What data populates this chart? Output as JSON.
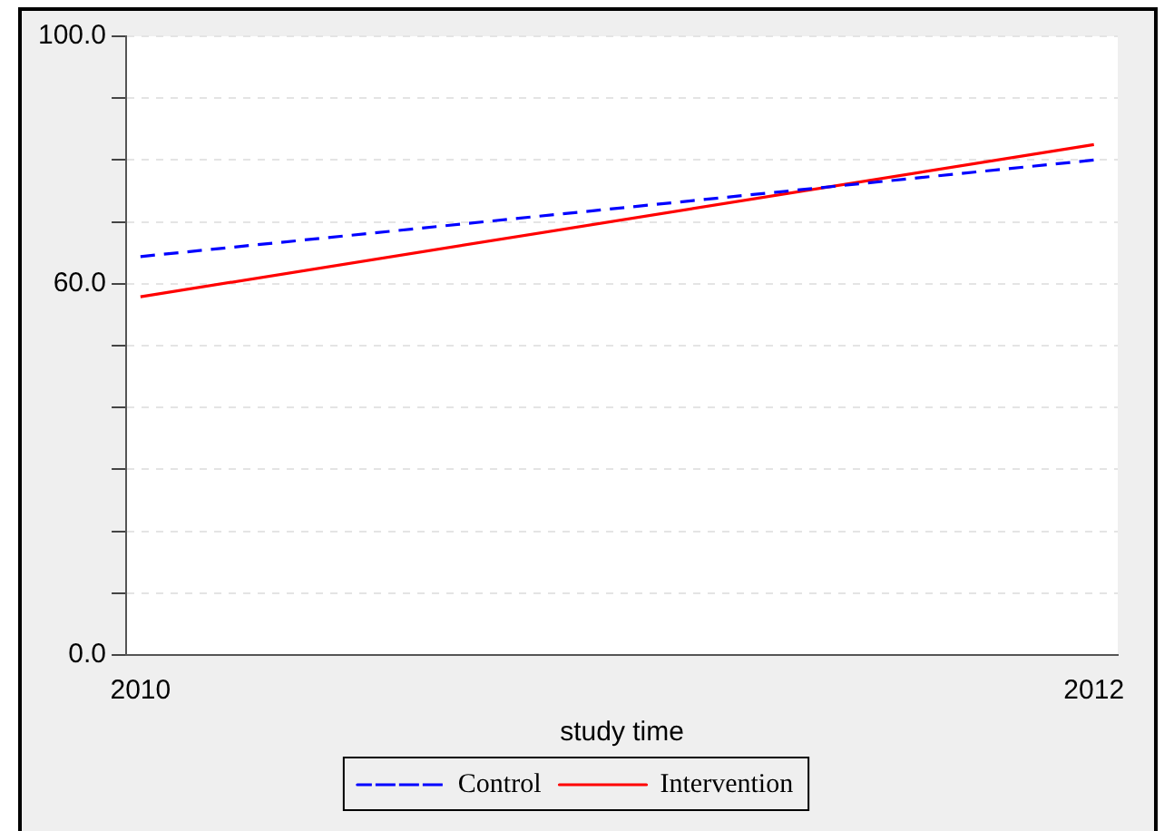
{
  "chart_data": {
    "type": "line",
    "xlabel": "study time",
    "x": [
      2010,
      2012
    ],
    "xlim": [
      2009.97,
      2012.05
    ],
    "xticks": [
      2010,
      2012
    ],
    "ylim": [
      0,
      100
    ],
    "yticks": [
      {
        "value": 0,
        "label": "0.0"
      },
      {
        "value": 10,
        "label": null
      },
      {
        "value": 20,
        "label": null
      },
      {
        "value": 30,
        "label": null
      },
      {
        "value": 40,
        "label": null
      },
      {
        "value": 50,
        "label": null
      },
      {
        "value": 60,
        "label": "60.0"
      },
      {
        "value": 70,
        "label": null
      },
      {
        "value": 80,
        "label": null
      },
      {
        "value": 90,
        "label": null
      },
      {
        "value": 100,
        "label": "100.0"
      }
    ],
    "series": [
      {
        "name": "Control",
        "color": "#0000ff",
        "values": [
          64.4,
          80.0
        ],
        "line_style": "dashed"
      },
      {
        "name": "Intervention",
        "color": "#ff0000",
        "values": [
          57.9,
          82.5
        ],
        "line_style": "solid"
      }
    ],
    "grid": "y",
    "legend": "bottom",
    "marker": "none"
  }
}
